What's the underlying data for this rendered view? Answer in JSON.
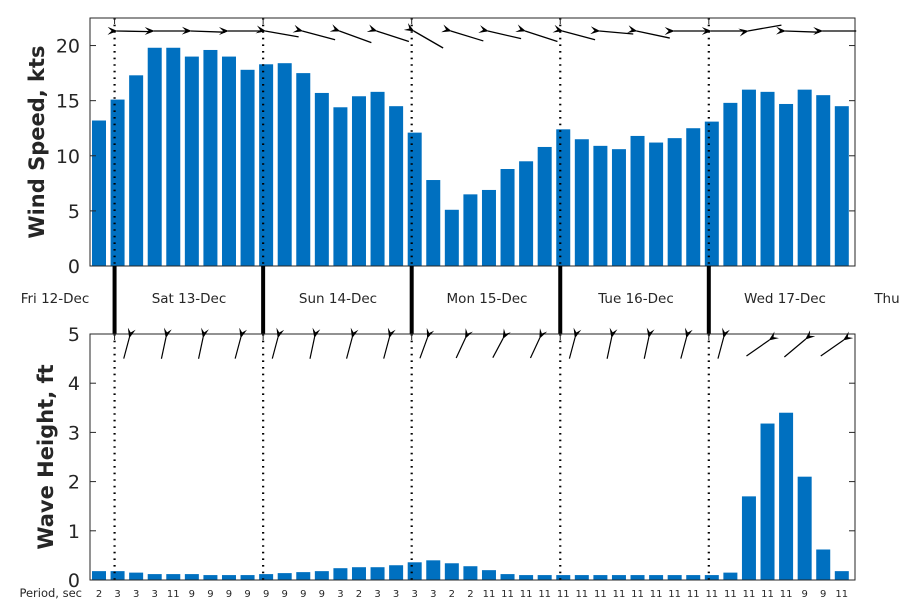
{
  "chart_data": [
    {
      "type": "bar",
      "title": "",
      "ylabel": "Wind Speed, kts",
      "xlabel": "",
      "ylim": [
        0,
        22.5
      ],
      "yticks": [
        "0",
        "5",
        "10",
        "15",
        "20"
      ],
      "interval_hours": 3,
      "values": [
        13.2,
        15.1,
        17.3,
        19.8,
        19.8,
        19.0,
        19.6,
        19.0,
        17.8,
        18.3,
        18.4,
        17.5,
        15.7,
        14.4,
        15.4,
        15.8,
        14.5,
        12.1,
        7.8,
        5.1,
        6.5,
        6.9,
        8.8,
        9.5,
        10.8,
        12.4,
        11.5,
        10.9,
        10.6,
        11.8,
        11.2,
        11.6,
        12.5,
        13.1,
        14.8,
        16.0,
        15.8,
        14.7,
        16.0,
        15.5,
        14.5
      ],
      "direction_arrows_deg": [
        179,
        180,
        178,
        180,
        170,
        165,
        160,
        162,
        150,
        163,
        167,
        162,
        165,
        175,
        168,
        180,
        180,
        190,
        178,
        180
      ],
      "color": "#0070C0"
    },
    {
      "type": "bar",
      "title": "",
      "ylabel": "Wave Height, ft",
      "xlabel": "Period, sec",
      "ylim": [
        0,
        5
      ],
      "yticks": [
        "0",
        "1",
        "2",
        "3",
        "4",
        "5"
      ],
      "interval_hours": 3,
      "values": [
        0.18,
        0.18,
        0.15,
        0.12,
        0.12,
        0.12,
        0.1,
        0.1,
        0.1,
        0.12,
        0.14,
        0.16,
        0.18,
        0.24,
        0.26,
        0.26,
        0.3,
        0.36,
        0.4,
        0.34,
        0.28,
        0.2,
        0.12,
        0.1,
        0.1,
        0.1,
        0.1,
        0.1,
        0.1,
        0.1,
        0.1,
        0.1,
        0.1,
        0.1,
        0.15,
        1.7,
        3.18,
        3.4,
        2.1,
        0.62,
        0.18
      ],
      "periods": [
        "2",
        "3",
        "3",
        "3",
        "11",
        "9",
        "9",
        "9",
        "9",
        "9",
        "9",
        "9",
        "9",
        "3",
        "2",
        "3",
        "3",
        "3",
        "3",
        "2",
        "2",
        "11",
        "11",
        "11",
        "11",
        "11",
        "11",
        "11",
        "11",
        "11",
        "11",
        "11",
        "11",
        "11",
        "11",
        "11",
        "11",
        "11",
        "9",
        "9",
        "11"
      ],
      "direction_arrows_deg": [
        75,
        78,
        78,
        75,
        75,
        78,
        75,
        75,
        70,
        65,
        62,
        65,
        75,
        78,
        78,
        75,
        75,
        35,
        40,
        35
      ],
      "color": "#0070C0"
    }
  ],
  "days": [
    "Fri 12-Dec",
    "Sat 13-Dec",
    "Sun 14-Dec",
    "Mon 15-Dec",
    "Tue 16-Dec",
    "Wed 17-Dec",
    "Thu"
  ]
}
